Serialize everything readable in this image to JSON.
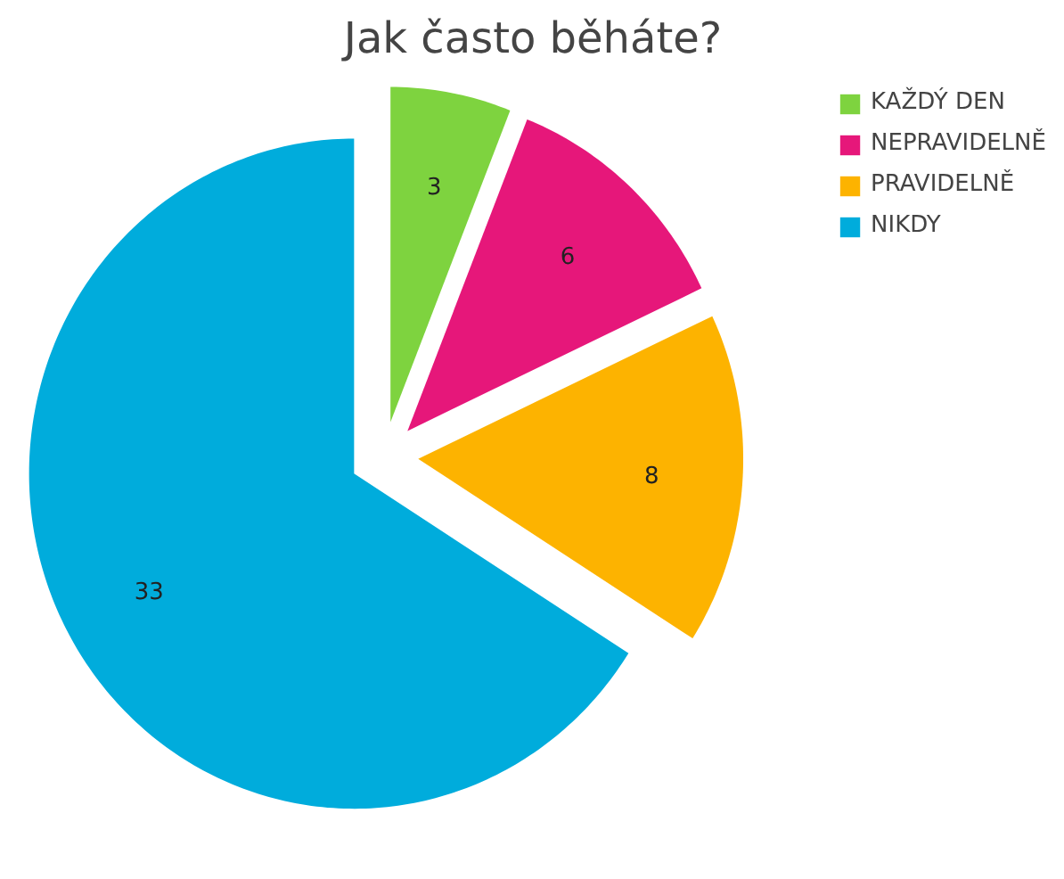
{
  "chart_data": {
    "type": "pie",
    "title": "Jak často běháte?",
    "categories": [
      "KAŽDÝ DEN",
      "NEPRAVIDELNĚ",
      "PRAVIDELNĚ",
      "NIKDY"
    ],
    "values": [
      3,
      6,
      8,
      33
    ],
    "colors": [
      "#7ed33f",
      "#e6177a",
      "#fdb300",
      "#00acdc"
    ],
    "data_labels": true,
    "legend": "top right"
  }
}
